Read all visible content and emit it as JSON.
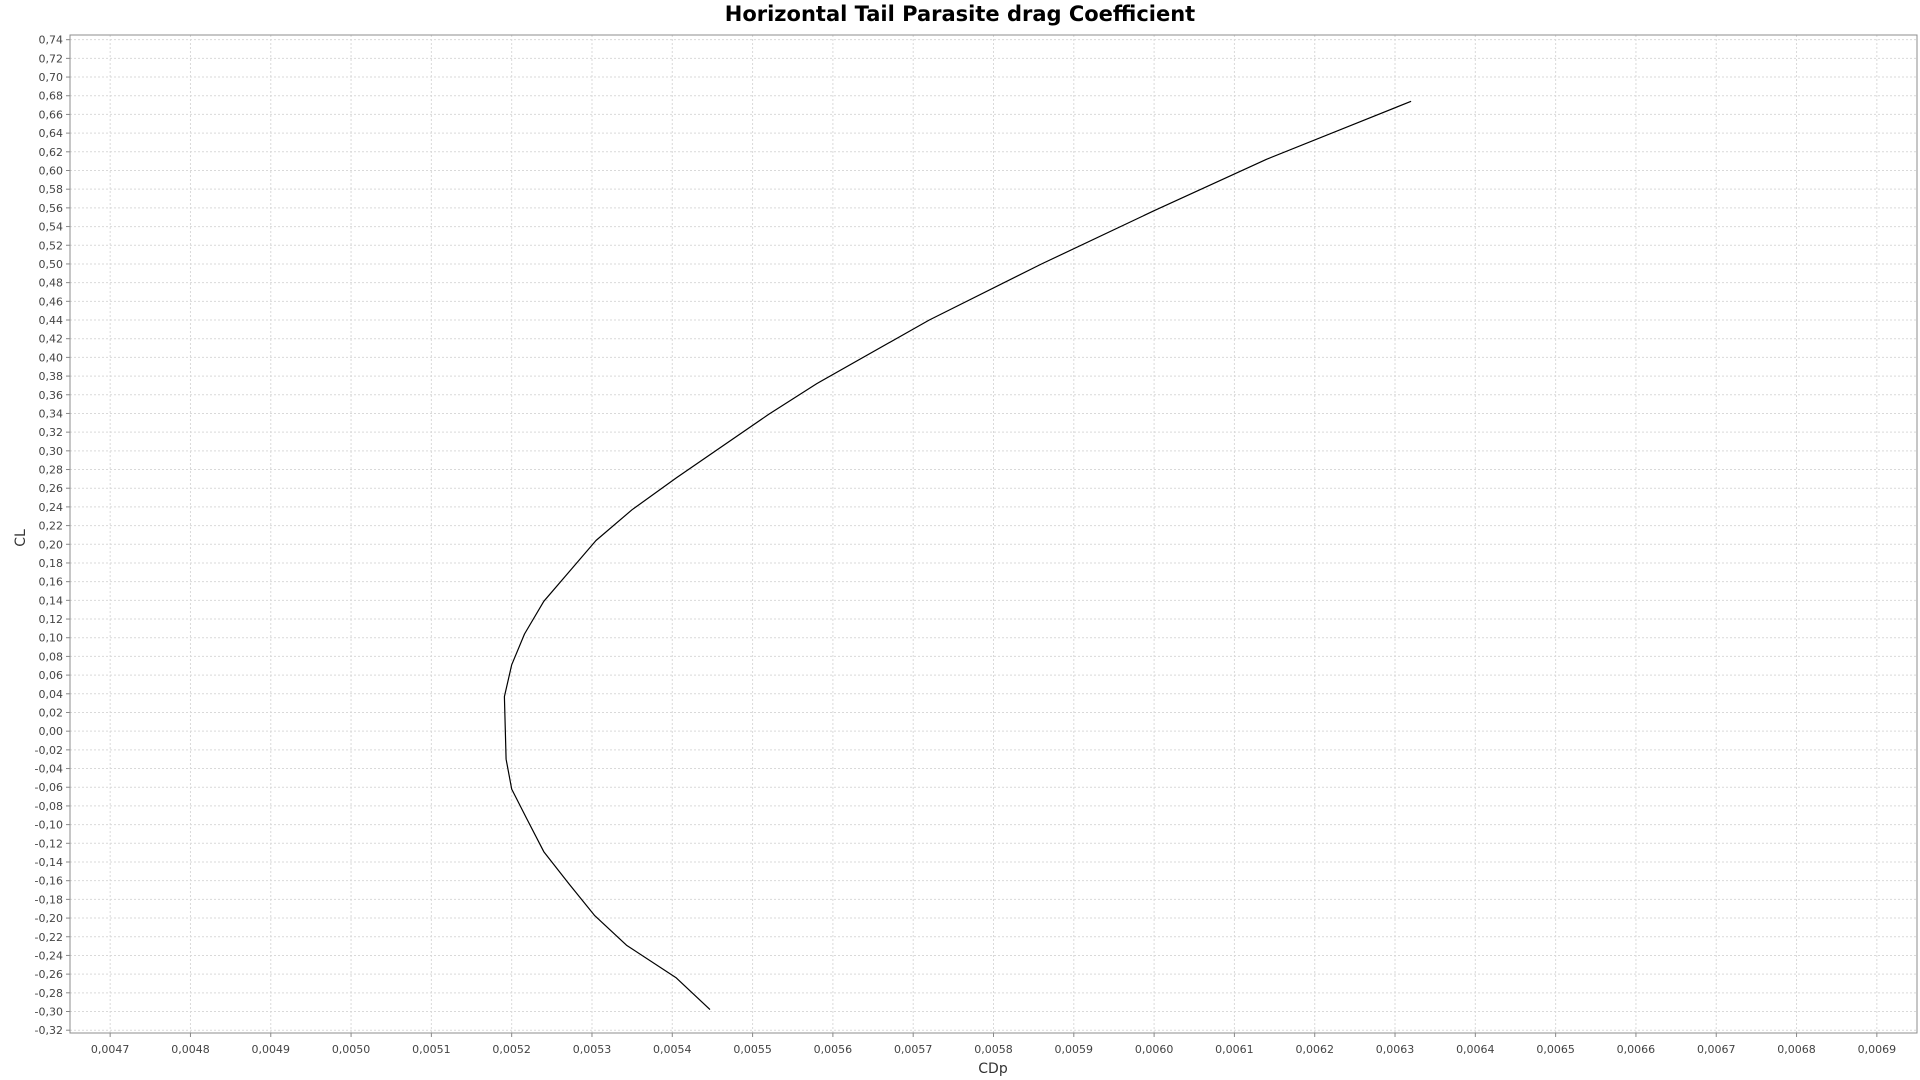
{
  "chart_data": {
    "type": "line",
    "title": "Horizontal Tail Parasite drag Coefficient",
    "xlabel": "CDp",
    "ylabel": "CL",
    "xlim": [
      0.00465,
      0.00695
    ],
    "ylim": [
      -0.323,
      0.745
    ],
    "grid": true,
    "x_ticks": [
      "0,0047",
      "0,0048",
      "0,0049",
      "0,0050",
      "0,0051",
      "0,0052",
      "0,0053",
      "0,0054",
      "0,0055",
      "0,0056",
      "0,0057",
      "0,0058",
      "0,0059",
      "0,0060",
      "0,0061",
      "0,0062",
      "0,0063",
      "0,0064",
      "0,0065",
      "0,0066",
      "0,0067",
      "0,0068",
      "0,0069"
    ],
    "y_ticks": [
      "-0,32",
      "-0,30",
      "-0,28",
      "-0,26",
      "-0,24",
      "-0,22",
      "-0,20",
      "-0,18",
      "-0,16",
      "-0,14",
      "-0,12",
      "-0,10",
      "-0,08",
      "-0,06",
      "-0,04",
      "-0,02",
      "0,00",
      "0,02",
      "0,04",
      "0,06",
      "0,08",
      "0,10",
      "0,12",
      "0,14",
      "0,16",
      "0,18",
      "0,20",
      "0,22",
      "0,24",
      "0,26",
      "0,28",
      "0,30",
      "0,32",
      "0,34",
      "0,36",
      "0,38",
      "0,40",
      "0,42",
      "0,44",
      "0,46",
      "0,48",
      "0,50",
      "0,52",
      "0,54",
      "0,56",
      "0,58",
      "0,60",
      "0,62",
      "0,64",
      "0,66",
      "0,68",
      "0,70",
      "0,72",
      "0,74"
    ],
    "series": [
      {
        "color": "#000000",
        "x": [
          0.005447,
          0.005405,
          0.005343,
          0.005303,
          0.005271,
          0.00524,
          0.005219,
          0.0052,
          0.005193,
          0.005191,
          0.0052,
          0.005216,
          0.00524,
          0.005272,
          0.005305,
          0.00535,
          0.005405,
          0.00552,
          0.00558,
          0.00572,
          0.00586,
          0.006,
          0.00614,
          0.00632
        ],
        "y": [
          -0.298,
          -0.264,
          -0.229,
          -0.197,
          -0.163,
          -0.129,
          -0.094,
          -0.062,
          -0.03,
          0.037,
          0.071,
          0.104,
          0.139,
          0.171,
          0.204,
          0.237,
          0.271,
          0.339,
          0.372,
          0.44,
          0.5,
          0.557,
          0.612,
          0.674
        ]
      }
    ]
  }
}
